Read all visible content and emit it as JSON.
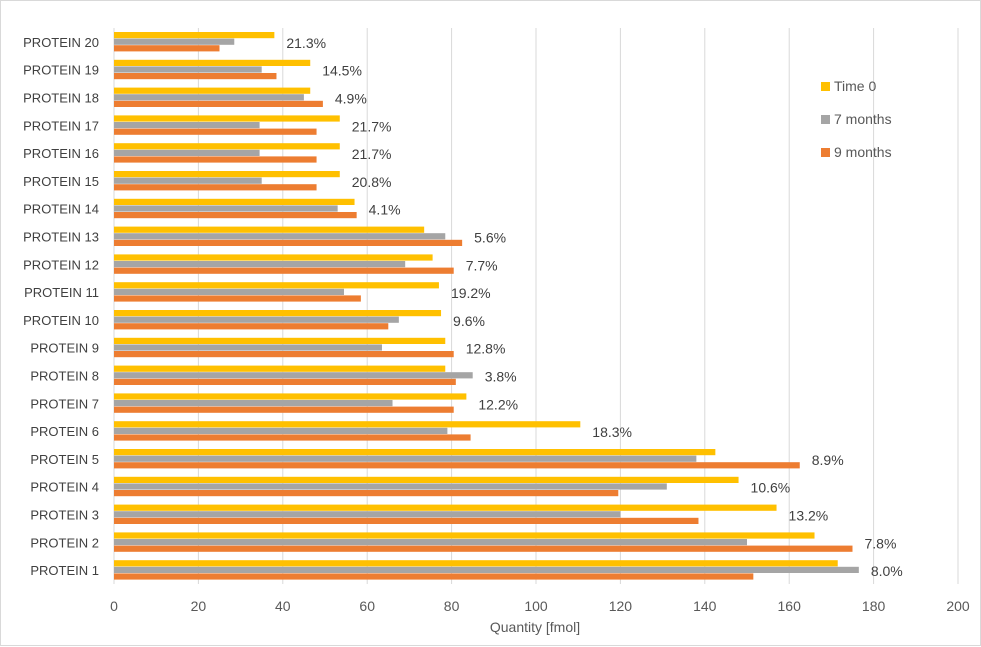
{
  "chart_data": {
    "type": "bar",
    "orientation": "horizontal",
    "title": "",
    "xlabel": "Quantity [fmol]",
    "ylabel": "",
    "xlim": [
      0,
      200
    ],
    "xticks": [
      0,
      20,
      40,
      60,
      80,
      100,
      120,
      140,
      160,
      180,
      200
    ],
    "grid": "vertical",
    "legend_position": "right",
    "categories": [
      "PROTEIN 1",
      "PROTEIN 2",
      "PROTEIN 3",
      "PROTEIN 4",
      "PROTEIN 5",
      "PROTEIN 6",
      "PROTEIN 7",
      "PROTEIN 8",
      "PROTEIN 9",
      "PROTEIN 10",
      "PROTEIN 11",
      "PROTEIN 12",
      "PROTEIN 13",
      "PROTEIN 14",
      "PROTEIN 15",
      "PROTEIN 16",
      "PROTEIN 17",
      "PROTEIN 18",
      "PROTEIN 19",
      "PROTEIN 20"
    ],
    "series": [
      {
        "name": "Time 0",
        "color": "#FFC000",
        "values": [
          171.5,
          166,
          157,
          148,
          142.5,
          110.5,
          83.5,
          78.5,
          78.5,
          77.5,
          77,
          75.5,
          73.5,
          57,
          53.5,
          53.5,
          53.5,
          46.5,
          46.5,
          38
        ]
      },
      {
        "name": "7 months",
        "color": "#A5A5A5",
        "values": [
          176.5,
          150,
          120,
          131,
          138,
          79,
          66,
          85,
          63.5,
          67.5,
          54.5,
          69,
          78.5,
          53,
          35,
          34.5,
          34.5,
          45,
          35,
          28.5
        ]
      },
      {
        "name": "9 months",
        "color": "#ED7D31",
        "values": [
          151.5,
          175,
          138.5,
          119.5,
          162.5,
          84.5,
          80.5,
          81,
          80.5,
          65,
          58.5,
          80.5,
          82.5,
          57.5,
          48,
          48,
          48,
          49.5,
          38.5,
          25
        ]
      }
    ],
    "data_labels": [
      "8.0%",
      "7.8%",
      "13.2%",
      "10.6%",
      "8.9%",
      "18.3%",
      "12.2%",
      "3.8%",
      "12.8%",
      "9.6%",
      "19.2%",
      "7.7%",
      "5.6%",
      "4.1%",
      "20.8%",
      "21.7%",
      "21.7%",
      "4.9%",
      "14.5%",
      "21.3%"
    ]
  },
  "axis_title": "Quantity [fmol]",
  "legend": [
    {
      "name": "Time 0",
      "color": "#FFC000"
    },
    {
      "name": "7 months",
      "color": "#A5A5A5"
    },
    {
      "name": "9 months",
      "color": "#ED7D31"
    }
  ]
}
